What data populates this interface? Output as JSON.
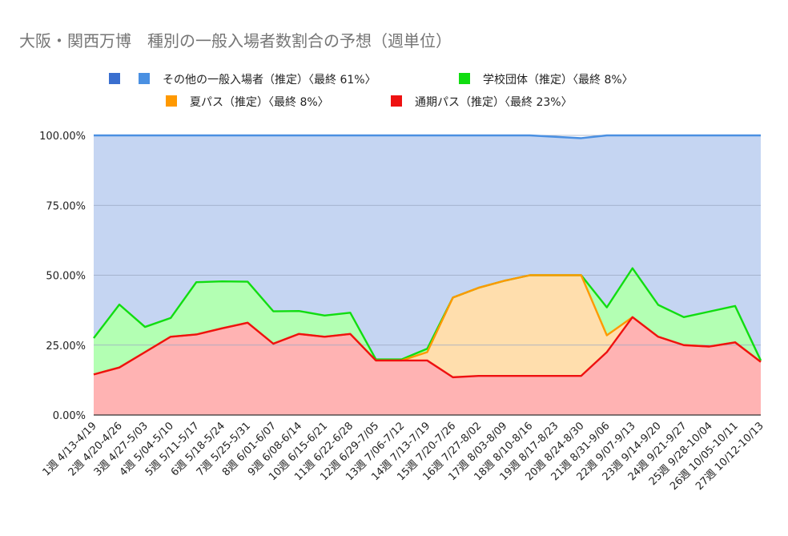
{
  "chart_data": {
    "type": "area",
    "title": "大阪・関西万博　種別の一般入場者数割合の予想（週単位）",
    "stacked": true,
    "y_format": "percent",
    "ylim": [
      0,
      100
    ],
    "yticks": [
      "0.00%",
      "25.00%",
      "50.00%",
      "75.00%",
      "100.00%"
    ],
    "grid": true,
    "legend_position": "top",
    "legend_extra_swatch_color": "#3a6fcf",
    "categories": [
      "1週 4/13-4/19",
      "2週 4/20-4/26",
      "3週 4/27-5/03",
      "4週 5/04-5/10",
      "5週 5/11-5/17",
      "6週 5/18-5/24",
      "7週 5/25-5/31",
      "8週 6/01-6/07",
      "9週 6/08-6/14",
      "10週 6/15-6/21",
      "11週 6/22-6/28",
      "12週 6/29-7/05",
      "13週 7/06-7/12",
      "14週 7/13-7/19",
      "15週 7/20-7/26",
      "16週 7/27-8/02",
      "17週 8/03-8/09",
      "18週 8/10-8/16",
      "19週 8/17-8/23",
      "20週 8/24-8/30",
      "21週 8/31-9/06",
      "22週 9/07-9/13",
      "23週 9/14-9/20",
      "24週 9/21-9/27",
      "25週 9/28-10/04",
      "26週 10/05-10/11",
      "27週 10/12-10/13"
    ],
    "series": [
      {
        "name": "通期パス（推定）〈最終 23%〉",
        "stroke": "#ee1111",
        "fill": "#ffb3b3",
        "values": [
          14.5,
          17,
          22.5,
          28,
          28.8,
          31,
          33,
          25.5,
          29,
          28,
          29,
          19.5,
          19.5,
          19.5,
          13.5,
          14,
          14,
          14,
          14,
          14,
          22.5,
          35,
          28,
          25,
          24.5,
          26,
          19
        ]
      },
      {
        "name": "夏パス（推定）〈最終 8%〉",
        "stroke": "#ff9900",
        "fill": "#ffdead",
        "values": [
          0,
          0,
          0,
          0,
          0,
          0,
          0,
          0,
          0,
          0,
          0,
          0,
          0,
          3,
          28.5,
          31.5,
          34,
          36,
          36,
          36,
          6,
          0,
          0,
          0,
          0,
          0,
          0
        ]
      },
      {
        "name": "学校団体（推定）〈最終 8%〉",
        "stroke": "#11dd11",
        "fill": "#b3ffb3",
        "values": [
          13,
          22.5,
          9,
          6.7,
          18.7,
          16.8,
          14.7,
          11.6,
          8.2,
          7.6,
          7.6,
          0.4,
          0.4,
          1.2,
          0,
          0,
          0,
          0,
          0,
          0,
          10,
          17.5,
          11.4,
          10,
          12.5,
          13,
          0.5
        ]
      },
      {
        "name": "その他の一般入場者（推定）〈最終 61%〉",
        "stroke": "#4a90e2",
        "fill": "#c5d5f2",
        "values": [
          72.5,
          60.5,
          68.5,
          65.3,
          52.5,
          52.2,
          52.3,
          62.9,
          62.8,
          64.4,
          63.4,
          80.1,
          80.1,
          76.3,
          58,
          54.5,
          52,
          50,
          49.5,
          49,
          61.5,
          47.5,
          60.6,
          65,
          63,
          61,
          80.5
        ]
      }
    ]
  }
}
